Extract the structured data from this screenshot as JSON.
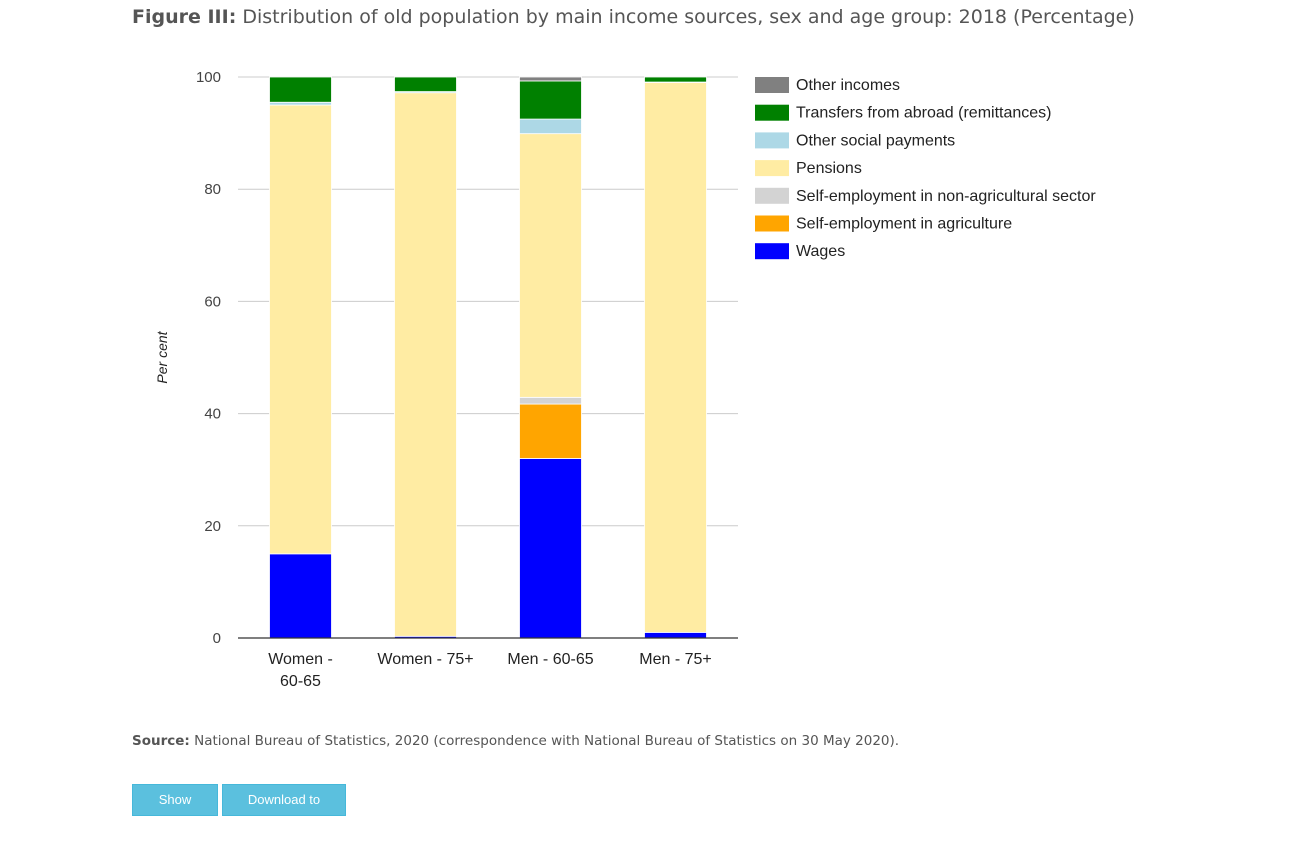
{
  "title": {
    "label": "Figure III:",
    "text": "Distribution of old population by main income sources, sex and age group: 2018 (Percentage)"
  },
  "chart_data": {
    "type": "bar",
    "stacked": true,
    "categories": [
      "Women - 60-65",
      "Women - 75+",
      "Men - 60-65",
      "Men - 75+"
    ],
    "category_lines": [
      [
        "Women -",
        "60-65"
      ],
      [
        "Women - 75+"
      ],
      [
        "Men - 60-65"
      ],
      [
        "Men - 75+"
      ]
    ],
    "ylabel": "Per cent",
    "ylim": [
      0,
      100
    ],
    "yticks": [
      0,
      20,
      40,
      60,
      80,
      100
    ],
    "grid": true,
    "legend": "right",
    "series": [
      {
        "name": "Wages",
        "color": "#0000ff",
        "values": [
          15.0,
          0.3,
          32.0,
          1.0
        ]
      },
      {
        "name": "Self-employment in agriculture",
        "color": "#ffa500",
        "values": [
          0.0,
          0.0,
          9.7,
          0.0
        ]
      },
      {
        "name": "Self-employment in non-agricultural sector",
        "color": "#d3d3d3",
        "values": [
          0.0,
          0.0,
          1.2,
          0.0
        ]
      },
      {
        "name": "Pensions",
        "color": "#ffeca3",
        "values": [
          80.0,
          96.9,
          47.0,
          98.0
        ]
      },
      {
        "name": "Other social payments",
        "color": "#add8e6",
        "values": [
          0.5,
          0.2,
          2.6,
          0.1
        ]
      },
      {
        "name": "Transfers from abroad (remittances)",
        "color": "#008000",
        "values": [
          4.5,
          2.6,
          6.8,
          0.9
        ]
      },
      {
        "name": "Other incomes",
        "color": "#808080",
        "values": [
          0.0,
          0.0,
          0.7,
          0.0
        ]
      }
    ]
  },
  "source": {
    "label": "Source:",
    "text": "National Bureau of Statistics, 2020 (correspondence with National Bureau of Statistics on 30 May 2020)."
  },
  "buttons": {
    "show_data": "Show Data",
    "download_csv": "Download to CSV"
  }
}
